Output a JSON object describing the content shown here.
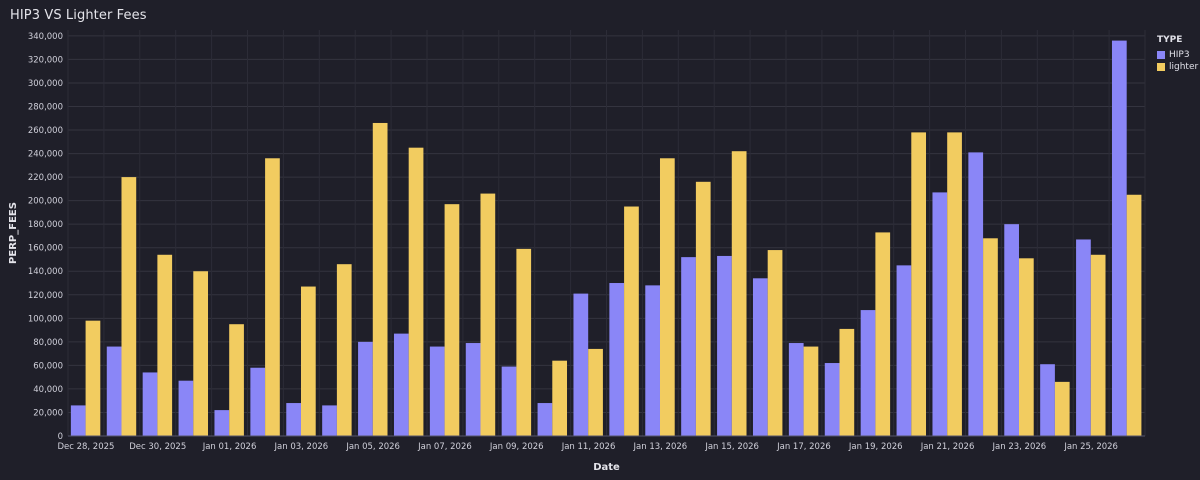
{
  "title": "HIP3 VS Lighter Fees",
  "legend": {
    "title": "TYPE",
    "items": [
      {
        "label": "HIP3",
        "color": "#8a86f7"
      },
      {
        "label": "lighter",
        "color": "#f2cc60"
      }
    ]
  },
  "chart_data": {
    "type": "bar",
    "title": "HIP3 VS Lighter Fees",
    "xlabel": "Date",
    "ylabel": "PERP_FEES",
    "ylim": [
      0,
      345000
    ],
    "yticks": [
      0,
      20000,
      40000,
      60000,
      80000,
      100000,
      120000,
      140000,
      160000,
      180000,
      200000,
      220000,
      240000,
      260000,
      280000,
      300000,
      320000,
      340000
    ],
    "ytick_labels": [
      "0",
      "20,000",
      "40,000",
      "60,000",
      "80,000",
      "100,000",
      "120,000",
      "140,000",
      "160,000",
      "180,000",
      "200,000",
      "220,000",
      "240,000",
      "260,000",
      "280,000",
      "300,000",
      "320,000",
      "340,000"
    ],
    "categories": [
      "Dec 28, 2025",
      "Dec 29, 2025",
      "Dec 30, 2025",
      "Dec 31, 2025",
      "Jan 01, 2026",
      "Jan 02, 2026",
      "Jan 03, 2026",
      "Jan 04, 2026",
      "Jan 05, 2026",
      "Jan 06, 2026",
      "Jan 07, 2026",
      "Jan 08, 2026",
      "Jan 09, 2026",
      "Jan 10, 2026",
      "Jan 11, 2026",
      "Jan 12, 2026",
      "Jan 13, 2026",
      "Jan 14, 2026",
      "Jan 15, 2026",
      "Jan 16, 2026",
      "Jan 17, 2026",
      "Jan 18, 2026",
      "Jan 19, 2026",
      "Jan 20, 2026",
      "Jan 21, 2026",
      "Jan 22, 2026",
      "Jan 23, 2026",
      "Jan 24, 2026",
      "Jan 25, 2026",
      "Jan 26, 2026"
    ],
    "xtick_labels": [
      "Dec 28, 2025",
      "Dec 30, 2025",
      "Jan 01, 2026",
      "Jan 03, 2026",
      "Jan 05, 2026",
      "Jan 07, 2026",
      "Jan 09, 2026",
      "Jan 11, 2026",
      "Jan 13, 2026",
      "Jan 15, 2026",
      "Jan 17, 2026",
      "Jan 19, 2026",
      "Jan 21, 2026",
      "Jan 23, 2026",
      "Jan 25, 2026"
    ],
    "series": [
      {
        "name": "HIP3",
        "color": "#8a86f7",
        "values": [
          26000,
          76000,
          54000,
          47000,
          22000,
          58000,
          28000,
          26000,
          80000,
          87000,
          76000,
          79000,
          59000,
          28000,
          121000,
          130000,
          128000,
          152000,
          153000,
          134000,
          79000,
          62000,
          107000,
          145000,
          207000,
          241000,
          180000,
          61000,
          167000,
          336000
        ]
      },
      {
        "name": "lighter",
        "color": "#f2cc60",
        "values": [
          98000,
          220000,
          154000,
          140000,
          95000,
          236000,
          127000,
          146000,
          266000,
          245000,
          197000,
          206000,
          159000,
          64000,
          74000,
          195000,
          236000,
          216000,
          242000,
          158000,
          76000,
          91000,
          173000,
          258000,
          258000,
          168000,
          151000,
          46000,
          154000,
          205000
        ]
      }
    ],
    "grid": true,
    "legend_position": "top-right"
  }
}
